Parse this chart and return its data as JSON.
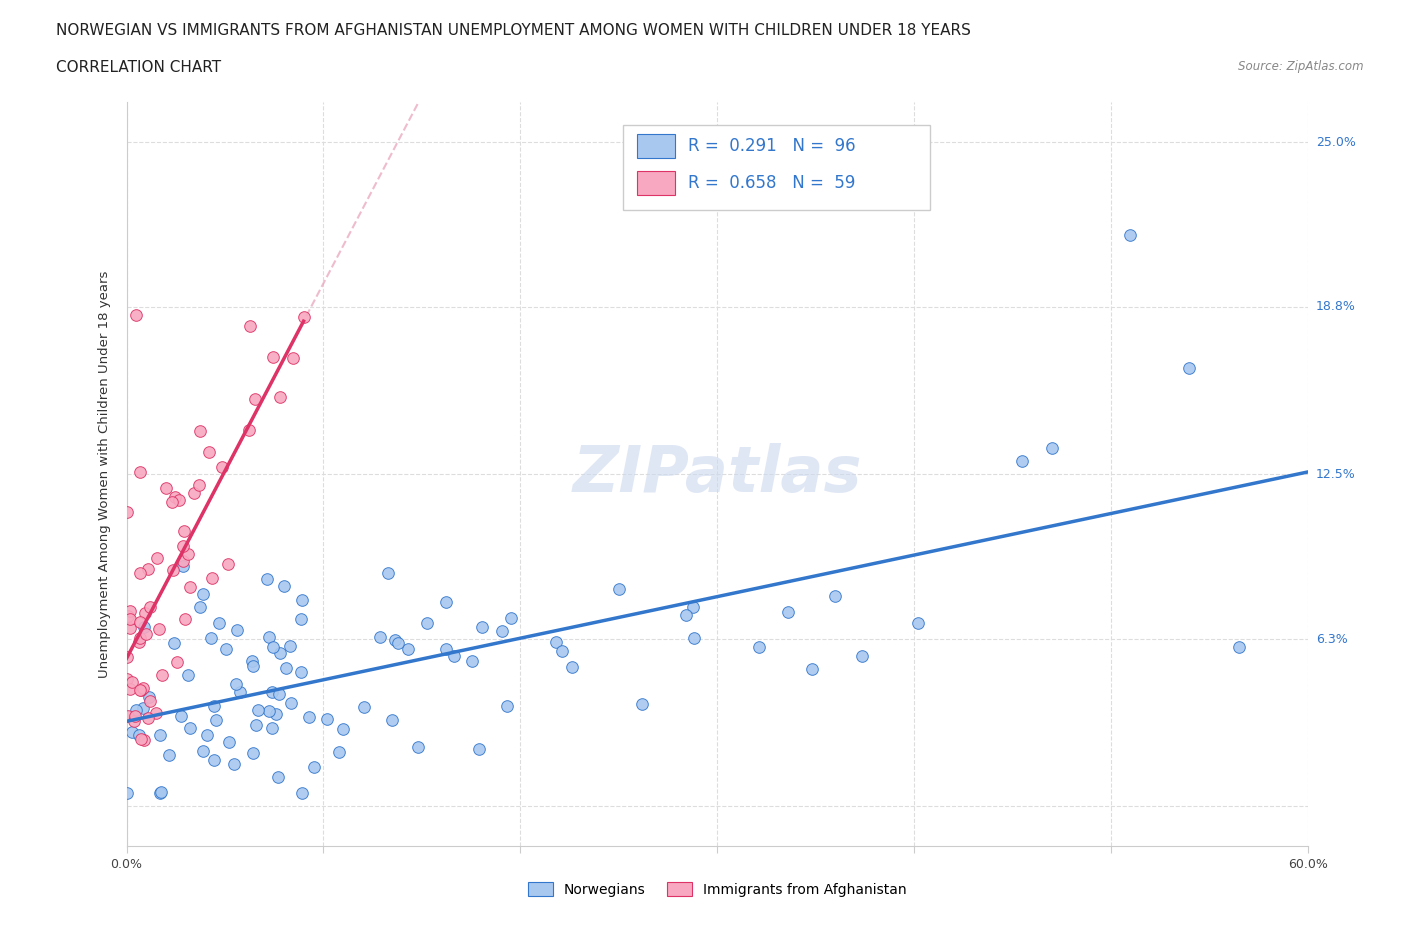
{
  "title_line1": "NORWEGIAN VS IMMIGRANTS FROM AFGHANISTAN UNEMPLOYMENT AMONG WOMEN WITH CHILDREN UNDER 18 YEARS",
  "title_line2": "CORRELATION CHART",
  "source": "Source: ZipAtlas.com",
  "ylabel": "Unemployment Among Women with Children Under 18 years",
  "xlim": [
    0.0,
    0.6
  ],
  "ylim": [
    -0.015,
    0.265
  ],
  "ytick_positions": [
    0.0,
    0.063,
    0.125,
    0.188,
    0.25
  ],
  "ytick_labels_right": [
    "",
    "6.3%",
    "12.5%",
    "18.8%",
    "25.0%"
  ],
  "xtick_positions": [
    0.0,
    0.1,
    0.2,
    0.3,
    0.4,
    0.5,
    0.6
  ],
  "color_norwegian": "#a8c8f0",
  "color_afghan": "#f8a8c0",
  "color_norwegian_line": "#3377cc",
  "color_afghan_line": "#dd3366",
  "color_dash": "#e8a0b8",
  "watermark": "ZIPatlas",
  "background_color": "#ffffff",
  "gridline_color": "#dddddd",
  "title_fontsize": 11,
  "axis_label_fontsize": 9.5,
  "tick_fontsize": 9,
  "legend_fontsize": 12
}
